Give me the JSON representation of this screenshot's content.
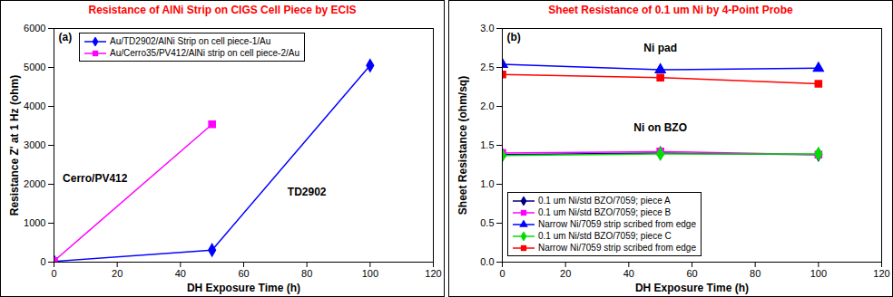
{
  "chart_data": [
    {
      "type": "line",
      "title": "Resistance of AlNi Strip on CIGS Cell Piece by ECIS",
      "panel_label": "(a)",
      "x_label": "DH Exposure Time (h)",
      "y_label": "Resistance Z' at 1 Hz (ohm)",
      "xlim": [
        0,
        120
      ],
      "xticks": [
        0,
        20,
        40,
        60,
        80,
        100,
        120
      ],
      "ylim": [
        0,
        6000
      ],
      "yticks": [
        0,
        1000,
        2000,
        3000,
        4000,
        5000,
        6000
      ],
      "grid": false,
      "legend": "top-left",
      "line_style": "solid",
      "series": [
        {
          "name": "Au/TD2902/AlNi Strip on cell piece-1/Au",
          "color": "#0000ff",
          "marker": "diamond",
          "x": [
            0,
            50,
            100
          ],
          "values": [
            20,
            310,
            5050
          ]
        },
        {
          "name": "Au/Cerro35/PV412/AlNi strip on cell piece-2/Au",
          "color": "#ff00ff",
          "marker": "square",
          "x": [
            0,
            50
          ],
          "values": [
            30,
            3540
          ]
        }
      ],
      "annotations": [
        {
          "text": "Cerro/PV412",
          "x": 13,
          "y": 2150
        },
        {
          "text": "TD2902",
          "x": 80,
          "y": 1800
        }
      ]
    },
    {
      "type": "line",
      "title": "Sheet Resistance of 0.1 um Ni by 4-Point Probe",
      "panel_label": "(b)",
      "x_label": "DH Exposure Time (h)",
      "y_label": "Sheet Resistance (ohm/sq)",
      "xlim": [
        0,
        120
      ],
      "xticks": [
        0,
        20,
        40,
        60,
        80,
        100,
        120
      ],
      "ylim": [
        0,
        3.0
      ],
      "yticks": [
        {
          "value": 0,
          "label": "0.0"
        },
        0.5,
        {
          "value": 1,
          "label": "1.0"
        },
        1.5,
        {
          "value": 2,
          "label": "2.0"
        },
        2.5,
        {
          "value": 3,
          "label": "3.0"
        }
      ],
      "grid": false,
      "legend": "bottom-left",
      "line_style": "solid",
      "series": [
        {
          "name": "0.1 um Ni/std BZO/7059; piece A",
          "color": "#000080",
          "marker": "diamond",
          "x": [
            0,
            50,
            100
          ],
          "values": [
            1.38,
            1.4,
            1.38
          ]
        },
        {
          "name": "0.1 um Ni/std BZO/7059; piece B",
          "color": "#ff00ff",
          "marker": "square",
          "x": [
            0,
            50,
            100
          ],
          "values": [
            1.4,
            1.42,
            1.38
          ]
        },
        {
          "name": "Narrow Ni/7059 strip scribed from edge",
          "color": "#0000ff",
          "marker": "triangle",
          "x": [
            0,
            50,
            100
          ],
          "values": [
            2.54,
            2.47,
            2.49
          ]
        },
        {
          "name": "0.1 um Ni/std BZO/7059; piece C",
          "color": "#00dd00",
          "marker": "diamond",
          "x": [
            0,
            50,
            100
          ],
          "values": [
            1.37,
            1.39,
            1.39
          ]
        },
        {
          "name": "Narrow Ni/7059 strip scribed from edge",
          "color": "#ff0000",
          "marker": "square",
          "x": [
            0,
            50,
            100
          ],
          "values": [
            2.41,
            2.37,
            2.29
          ]
        }
      ],
      "annotations": [
        {
          "text": "Ni pad",
          "x": 50,
          "y": 2.75
        },
        {
          "text": "Ni on BZO",
          "x": 50,
          "y": 1.72
        }
      ]
    }
  ]
}
